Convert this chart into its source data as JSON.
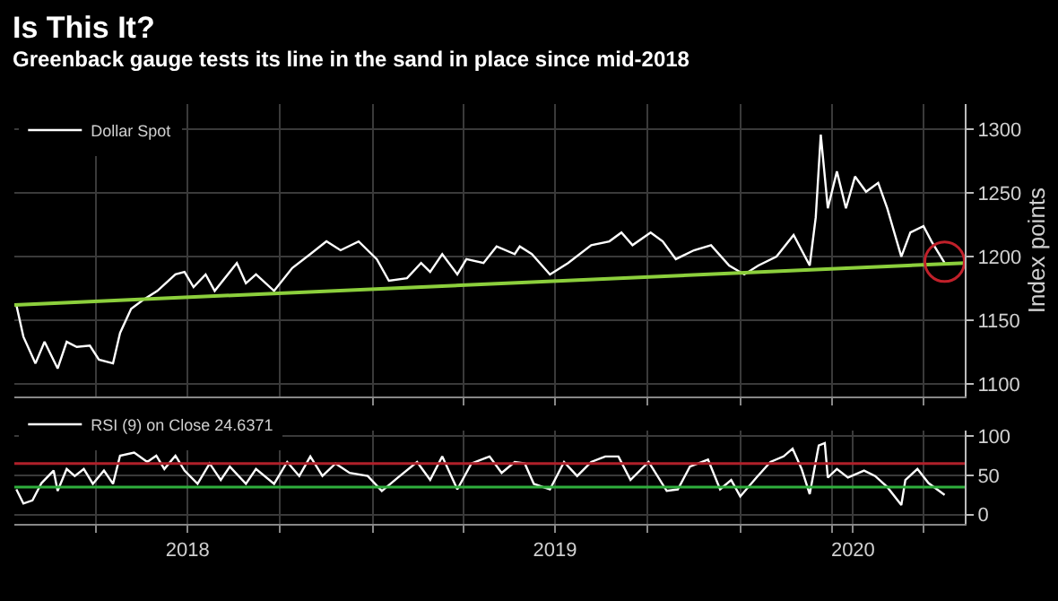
{
  "chart_data": [
    {
      "type": "line",
      "title": "Is This It?",
      "subtitle": "Greenback gauge tests its line in the sand in place since mid-2018",
      "ylabel": "Index points",
      "series": [
        {
          "name": "Dollar Spot",
          "color": "#ffffff",
          "x": [
            "2018-01-12",
            "2018-01-19",
            "2018-01-31",
            "2018-02-09",
            "2018-02-22",
            "2018-03-03",
            "2018-03-13",
            "2018-03-26",
            "2018-04-04",
            "2018-04-18",
            "2018-04-25",
            "2018-05-06",
            "2018-05-18",
            "2018-06-01",
            "2018-06-19",
            "2018-06-28",
            "2018-07-07",
            "2018-07-19",
            "2018-07-28",
            "2018-08-19",
            "2018-08-28",
            "2018-09-07",
            "2018-09-25",
            "2018-10-13",
            "2018-10-31",
            "2018-11-16",
            "2018-11-30",
            "2018-12-18",
            "2019-01-05",
            "2019-01-17",
            "2019-02-04",
            "2019-02-18",
            "2019-02-27",
            "2019-03-11",
            "2019-03-26",
            "2019-04-04",
            "2019-04-21",
            "2019-05-04",
            "2019-05-22",
            "2019-05-27",
            "2019-06-08",
            "2019-06-26",
            "2019-07-14",
            "2019-08-06",
            "2019-08-24",
            "2019-09-05",
            "2019-09-16",
            "2019-10-04",
            "2019-10-16",
            "2019-10-29",
            "2019-11-16",
            "2019-12-03",
            "2019-12-21",
            "2020-01-05",
            "2020-01-19",
            "2020-02-06",
            "2020-02-23",
            "2020-03-10",
            "2020-03-16",
            "2020-03-21",
            "2020-03-28",
            "2020-04-06",
            "2020-04-15",
            "2020-04-24",
            "2020-05-05",
            "2020-05-17",
            "2020-05-26",
            "2020-06-09",
            "2020-06-18",
            "2020-07-01",
            "2020-07-09",
            "2020-07-22"
          ],
          "values": [
            1162,
            1137,
            1116,
            1133,
            1112,
            1133,
            1129,
            1130,
            1119,
            1116,
            1140,
            1159,
            1166,
            1173,
            1186,
            1188,
            1176,
            1186,
            1173,
            1195,
            1179,
            1186,
            1173,
            1191,
            1202,
            1212,
            1205,
            1212,
            1198,
            1181,
            1183,
            1195,
            1188,
            1202,
            1186,
            1198,
            1195,
            1208,
            1202,
            1208,
            1202,
            1186,
            1195,
            1209,
            1212,
            1219,
            1209,
            1219,
            1212,
            1198,
            1205,
            1209,
            1193,
            1186,
            1193,
            1200,
            1217,
            1193,
            1231,
            1296,
            1238,
            1267,
            1238,
            1263,
            1251,
            1258,
            1238,
            1200,
            1219,
            1224,
            1212,
            1195
          ]
        },
        {
          "color": "#8ccf3c",
          "x": [
            "2018-01-10",
            "2020-08-11"
          ],
          "values": [
            1162,
            1195
          ]
        },
        {
          "type": "scatter",
          "marker": "circle",
          "color": "#c0202a",
          "x": [
            "2020-07-22"
          ],
          "values": [
            1196
          ]
        }
      ],
      "xlim": [
        "2018-01-10",
        "2020-08-11"
      ],
      "xticks": [
        {
          "value": "2018-04-01",
          "label": null
        },
        {
          "value": "2018-07-01",
          "label": null
        },
        {
          "value": "2018-10-01",
          "label": null
        },
        {
          "value": "2019-01-01",
          "label": null
        },
        {
          "value": "2019-04-01",
          "label": null
        },
        {
          "value": "2019-07-01",
          "label": null
        },
        {
          "value": "2019-10-01",
          "label": null
        },
        {
          "value": "2020-01-01",
          "label": null
        },
        {
          "value": "2020-04-01",
          "label": null
        },
        {
          "value": "2020-07-01",
          "label": null
        }
      ],
      "ylim": [
        1090,
        1320
      ],
      "yticks": [
        1100,
        1150,
        1200,
        1250,
        1300
      ],
      "tick_labels": "y",
      "grid": true,
      "legend": "top left"
    },
    {
      "type": "line",
      "series": [
        {
          "name": "RSI (9) on Close 24.6371",
          "color": "#ffffff",
          "x": [
            "2018-01-12",
            "2018-01-19",
            "2018-01-28",
            "2018-02-06",
            "2018-02-18",
            "2018-02-22",
            "2018-03-03",
            "2018-03-11",
            "2018-03-20",
            "2018-03-29",
            "2018-04-09",
            "2018-04-18",
            "2018-04-25",
            "2018-05-09",
            "2018-05-22",
            "2018-05-31",
            "2018-06-08",
            "2018-06-19",
            "2018-06-28",
            "2018-07-11",
            "2018-07-23",
            "2018-08-03",
            "2018-08-12",
            "2018-08-28",
            "2018-09-07",
            "2018-09-25",
            "2018-10-08",
            "2018-10-20",
            "2018-10-31",
            "2018-11-12",
            "2018-11-25",
            "2018-12-09",
            "2018-12-27",
            "2019-01-10",
            "2019-01-26",
            "2019-02-14",
            "2019-02-27",
            "2019-03-11",
            "2019-03-26",
            "2019-04-09",
            "2019-04-27",
            "2019-05-09",
            "2019-05-22",
            "2019-06-01",
            "2019-06-10",
            "2019-06-26",
            "2019-07-10",
            "2019-07-23",
            "2019-08-06",
            "2019-08-20",
            "2019-09-02",
            "2019-09-14",
            "2019-10-02",
            "2019-10-20",
            "2019-10-31",
            "2019-11-12",
            "2019-11-30",
            "2019-12-12",
            "2019-12-23",
            "2020-01-01",
            "2020-01-17",
            "2020-01-31",
            "2020-02-13",
            "2020-02-22",
            "2020-03-02",
            "2020-03-10",
            "2020-03-19",
            "2020-03-25",
            "2020-03-28",
            "2020-04-06",
            "2020-04-17",
            "2020-05-03",
            "2020-05-14",
            "2020-05-26",
            "2020-06-09",
            "2020-06-13",
            "2020-06-25",
            "2020-07-06",
            "2020-07-22"
          ],
          "values": [
            32,
            14,
            18,
            40,
            56,
            30,
            58,
            49,
            58,
            39,
            56,
            39,
            75,
            79,
            67,
            75,
            58,
            75,
            56,
            39,
            65,
            44,
            61,
            39,
            58,
            39,
            67,
            49,
            74,
            49,
            65,
            53,
            49,
            30,
            47,
            67,
            44,
            74,
            32,
            65,
            74,
            53,
            67,
            65,
            39,
            32,
            67,
            49,
            67,
            74,
            74,
            44,
            67,
            30,
            32,
            61,
            70,
            32,
            44,
            23,
            47,
            67,
            74,
            84,
            58,
            26,
            88,
            91,
            47,
            58,
            47,
            56,
            49,
            35,
            12,
            44,
            58,
            40,
            25
          ]
        }
      ],
      "ref_lines": [
        {
          "axis": "y",
          "value": 65,
          "color": "#b0202a"
        },
        {
          "axis": "y",
          "value": 35,
          "color": "#2fae3c"
        }
      ],
      "xlim": [
        "2018-01-10",
        "2020-08-11"
      ],
      "xticks": [
        {
          "value": "2018-04-01",
          "label": null
        },
        {
          "value": "2018-07-01",
          "label": "2018"
        },
        {
          "value": "2018-10-01",
          "label": null
        },
        {
          "value": "2019-01-01",
          "label": null
        },
        {
          "value": "2019-04-01",
          "label": null
        },
        {
          "value": "2019-07-01",
          "label": "2019"
        },
        {
          "value": "2019-10-01",
          "label": null
        },
        {
          "value": "2020-01-01",
          "label": null
        },
        {
          "value": "2020-04-01",
          "label": null
        },
        {
          "value": "2020-04-22",
          "label": "2020"
        },
        {
          "value": "2020-07-01",
          "label": null
        }
      ],
      "ylim": [
        -12,
        107
      ],
      "yticks": [
        0,
        50,
        100
      ],
      "grid": true,
      "legend": "top left"
    }
  ]
}
